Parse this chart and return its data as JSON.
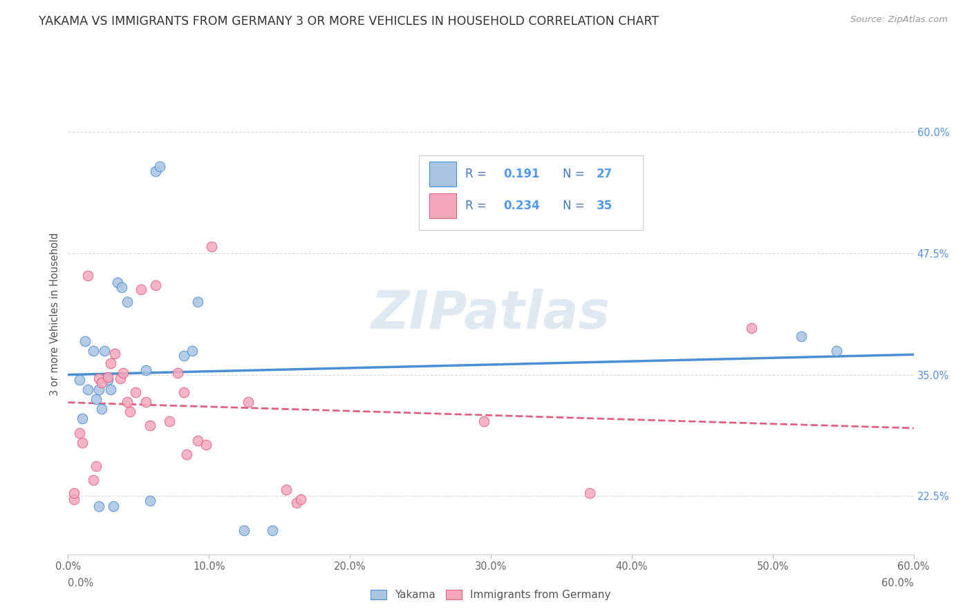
{
  "title": "YAKAMA VS IMMIGRANTS FROM GERMANY 3 OR MORE VEHICLES IN HOUSEHOLD CORRELATION CHART",
  "source": "Source: ZipAtlas.com",
  "ylabel_label": "3 or more Vehicles in Household",
  "legend_labels": [
    "Yakama",
    "Immigrants from Germany"
  ],
  "r_blue": "0.191",
  "n_blue": "27",
  "r_pink": "0.234",
  "n_pink": "35",
  "blue_color": "#aac4e2",
  "pink_color": "#f5a8bc",
  "blue_line_color": "#4a8fd4",
  "pink_line_color": "#e06080",
  "right_tick_color": "#5590dd",
  "background_color": "#ffffff",
  "grid_color": "#d8d8d8",
  "title_color": "#333333",
  "watermark_text": "ZIPatlas",
  "watermark_color": "#c8d8e8",
  "xmin": 0.0,
  "xmax": 0.6,
  "ymin": 0.165,
  "ymax": 0.66,
  "blue_scatter_x": [
    0.008,
    0.01,
    0.012,
    0.014,
    0.018,
    0.02,
    0.022,
    0.022,
    0.024,
    0.026,
    0.028,
    0.03,
    0.032,
    0.035,
    0.038,
    0.042,
    0.055,
    0.058,
    0.062,
    0.065,
    0.082,
    0.088,
    0.092,
    0.125,
    0.145,
    0.52,
    0.545
  ],
  "blue_scatter_y": [
    0.345,
    0.305,
    0.385,
    0.335,
    0.375,
    0.325,
    0.335,
    0.215,
    0.315,
    0.375,
    0.345,
    0.335,
    0.215,
    0.445,
    0.44,
    0.425,
    0.355,
    0.22,
    0.56,
    0.565,
    0.37,
    0.375,
    0.425,
    0.19,
    0.19,
    0.39,
    0.375
  ],
  "pink_scatter_x": [
    0.004,
    0.004,
    0.008,
    0.01,
    0.014,
    0.018,
    0.02,
    0.022,
    0.024,
    0.028,
    0.03,
    0.033,
    0.037,
    0.039,
    0.042,
    0.044,
    0.048,
    0.052,
    0.055,
    0.058,
    0.062,
    0.072,
    0.078,
    0.082,
    0.084,
    0.092,
    0.098,
    0.102,
    0.128,
    0.155,
    0.162,
    0.165,
    0.295,
    0.37,
    0.485
  ],
  "pink_scatter_y": [
    0.222,
    0.228,
    0.29,
    0.28,
    0.452,
    0.242,
    0.256,
    0.346,
    0.342,
    0.348,
    0.362,
    0.372,
    0.346,
    0.352,
    0.322,
    0.312,
    0.332,
    0.438,
    0.322,
    0.298,
    0.442,
    0.302,
    0.352,
    0.332,
    0.268,
    0.282,
    0.278,
    0.482,
    0.322,
    0.232,
    0.218,
    0.222,
    0.302,
    0.228,
    0.398
  ],
  "x_tick_vals": [
    0.0,
    0.1,
    0.2,
    0.3,
    0.4,
    0.5,
    0.6
  ],
  "x_tick_labels": [
    "0.0%",
    "10.0%",
    "20.0%",
    "30.0%",
    "40.0%",
    "50.0%",
    "60.0%"
  ],
  "y_tick_vals": [
    0.225,
    0.35,
    0.475,
    0.6
  ],
  "y_tick_labels": [
    "22.5%",
    "35.0%",
    "47.5%",
    "60.0%"
  ],
  "bottom_x_labels": [
    "0.0%",
    "60.0%"
  ]
}
